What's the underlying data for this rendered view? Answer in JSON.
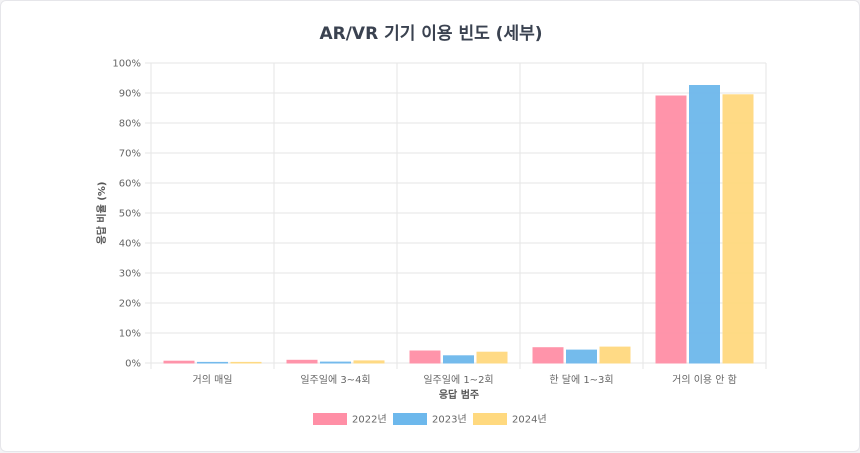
{
  "chart_data": {
    "type": "bar",
    "title": "AR/VR 기기 이용 빈도 (세부)",
    "xlabel": "응답 범주",
    "ylabel": "응답 비율 (%)",
    "ylim": [
      0,
      100
    ],
    "y_ticks": [
      "0%",
      "10%",
      "20%",
      "30%",
      "40%",
      "50%",
      "60%",
      "70%",
      "80%",
      "90%",
      "100%"
    ],
    "categories": [
      "거의 매일",
      "일주일에 3~4회",
      "일주일에 1~2회",
      "한 달에 1~3회",
      "거의 이용 안 함"
    ],
    "series": [
      {
        "name": "2022년",
        "color": "#ff8fa6",
        "values": [
          0.6,
          0.9,
          4.0,
          5.1,
          89.0
        ]
      },
      {
        "name": "2023년",
        "color": "#6db8ec",
        "values": [
          0.2,
          0.3,
          2.4,
          4.3,
          92.5
        ]
      },
      {
        "name": "2024년",
        "color": "#ffd97f",
        "values": [
          0.2,
          0.7,
          3.6,
          5.3,
          89.4
        ]
      }
    ],
    "grid": true,
    "legend_position": "bottom"
  }
}
